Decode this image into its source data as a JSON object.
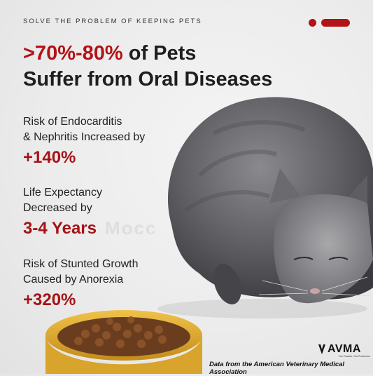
{
  "header": {
    "eyebrow": "SOLVE THE PROBLEM OF KEEPING PETS",
    "headline_highlight": ">70%-80%",
    "headline_rest_line1": " of Pets",
    "headline_line2": "Suffer from Oral Diseases"
  },
  "stats": [
    {
      "label_line1": "Risk of Endocarditis",
      "label_line2": "& Nephritis Increased by",
      "value": "+140%"
    },
    {
      "label_line1": "Life Expectancy",
      "label_line2": "Decreased by",
      "value": "3-4 Years"
    },
    {
      "label_line1": "Risk of Stunted Growth",
      "label_line2": "Caused by Anorexia",
      "value": "+320%"
    }
  ],
  "watermark": "Mocc",
  "footer": {
    "logo_text": "AVMA",
    "logo_tagline": "Our Passion. Our Profession.",
    "source": "Data from the American Veterinary Medical Association"
  },
  "colors": {
    "accent": "#b31217",
    "text": "#1e1e1e"
  },
  "icons": {
    "cat": "cat-illustration",
    "bowl": "pet-food-bowl",
    "logo": "avma-logo-icon"
  }
}
